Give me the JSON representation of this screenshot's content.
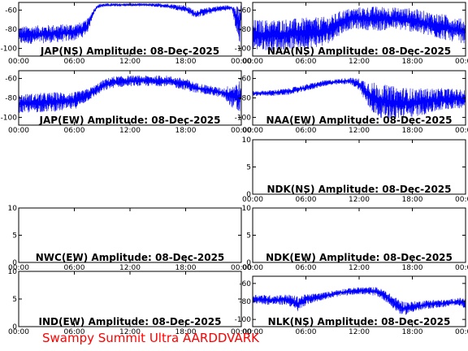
{
  "footer_text": "Swampy Summit Ultra AARDDVARK",
  "chart_data": [
    {
      "type": "line",
      "title": "JAP(NS) Amplitude: 08-Dec-2025",
      "x_ticks": [
        "00:00",
        "06:00",
        "12:00",
        "18:00",
        "00:00"
      ],
      "y_ticks": [
        "-60",
        "-80",
        "-100"
      ],
      "ylim": [
        -108,
        -52
      ],
      "color": "#0000ff",
      "series": [
        {
          "envelope_hours": [
            0,
            2,
            4,
            6,
            7,
            7.5,
            8,
            8.5,
            9,
            10,
            12,
            14,
            16,
            18,
            19,
            20,
            21,
            22,
            23,
            23.8,
            24
          ],
          "upper": [
            -77,
            -76,
            -75,
            -74,
            -72,
            -68,
            -60,
            -54,
            -53,
            -53,
            -53,
            -53,
            -53,
            -55,
            -60,
            -58,
            -56,
            -55,
            -55,
            -56,
            -54
          ],
          "lower": [
            -96,
            -95,
            -94,
            -92,
            -88,
            -82,
            -66,
            -58,
            -57,
            -56,
            -56,
            -56,
            -58,
            -62,
            -68,
            -66,
            -63,
            -61,
            -60,
            -100,
            -62
          ]
        }
      ]
    },
    {
      "type": "line",
      "title": "NAA(NS) Amplitude: 08-Dec-2025",
      "x_ticks": [
        "00:00",
        "06:00",
        "12:00",
        "18:00",
        "00:00"
      ],
      "y_ticks": [
        "-60",
        "-80",
        "-100"
      ],
      "ylim": [
        -108,
        -52
      ],
      "color": "#0000ff",
      "series": [
        {
          "envelope_hours": [
            0,
            2,
            4,
            6,
            8,
            9,
            10,
            11,
            12,
            14,
            16,
            18,
            20,
            22,
            24
          ],
          "upper": [
            -70,
            -70,
            -69,
            -68,
            -67,
            -65,
            -60,
            -58,
            -57,
            -56,
            -57,
            -58,
            -62,
            -65,
            -70
          ],
          "lower": [
            -102,
            -102,
            -101,
            -100,
            -98,
            -92,
            -85,
            -80,
            -80,
            -82,
            -80,
            -83,
            -88,
            -92,
            -95
          ]
        }
      ]
    },
    {
      "type": "line",
      "title": "JAP(EW) Amplitude: 08-Dec-2025",
      "x_ticks": [
        "00:00",
        "06:00",
        "12:00",
        "18:00",
        "00:00"
      ],
      "y_ticks": [
        "-60",
        "-80",
        "-100"
      ],
      "ylim": [
        -108,
        -52
      ],
      "color": "#0000ff",
      "series": [
        {
          "envelope_hours": [
            0,
            2,
            4,
            6,
            7,
            8,
            9,
            10,
            12,
            14,
            16,
            18,
            19,
            20,
            22,
            23.8,
            24
          ],
          "upper": [
            -76,
            -75,
            -74,
            -74,
            -72,
            -68,
            -62,
            -58,
            -57,
            -57,
            -57,
            -60,
            -64,
            -66,
            -70,
            -62,
            -70
          ],
          "lower": [
            -96,
            -95,
            -94,
            -92,
            -86,
            -80,
            -74,
            -70,
            -68,
            -68,
            -68,
            -72,
            -75,
            -76,
            -80,
            -98,
            -78
          ]
        }
      ]
    },
    {
      "type": "line",
      "title": "NAA(EW) Amplitude: 08-Dec-2025",
      "x_ticks": [
        "00:00",
        "06:00",
        "12:00",
        "18:00",
        "00:00"
      ],
      "y_ticks": [
        "-60",
        "-80",
        "-100"
      ],
      "ylim": [
        -108,
        -52
      ],
      "color": "#0000ff",
      "series": [
        {
          "envelope_hours": [
            0,
            2,
            4,
            6,
            8,
            10,
            11,
            12,
            13,
            14,
            16,
            18,
            20,
            22,
            24
          ],
          "upper": [
            -73,
            -72,
            -70,
            -66,
            -62,
            -60,
            -59,
            -60,
            -62,
            -65,
            -68,
            -70,
            -70,
            -70,
            -72
          ],
          "lower": [
            -78,
            -78,
            -77,
            -73,
            -68,
            -66,
            -66,
            -72,
            -90,
            -100,
            -102,
            -100,
            -96,
            -92,
            -90
          ]
        }
      ]
    },
    {
      "type": "line",
      "title": "NDK(NS) Amplitude: 08-Dec-2025",
      "x_ticks": [
        "00:00",
        "06:00",
        "12:00",
        "18:00",
        "00:00"
      ],
      "y_ticks": [
        "10",
        "5",
        "0"
      ],
      "ylim": [
        0,
        10
      ],
      "series": []
    },
    {
      "type": "line",
      "title": "NWC(EW) Amplitude: 08-Dec-2025",
      "x_ticks": [
        "00:00",
        "06:00",
        "12:00",
        "18:00",
        "00:00"
      ],
      "y_ticks": [
        "10",
        "5",
        "0"
      ],
      "ylim": [
        0,
        10
      ],
      "series": []
    },
    {
      "type": "line",
      "title": "NDK(EW) Amplitude: 08-Dec-2025",
      "x_ticks": [
        "00:00",
        "06:00",
        "12:00",
        "18:00",
        "00:00"
      ],
      "y_ticks": [
        "10",
        "5",
        "0"
      ],
      "ylim": [
        0,
        10
      ],
      "series": []
    },
    {
      "type": "line",
      "title": "IND(EW) Amplitude: 08-Dec-2025",
      "x_ticks": [
        "00:00",
        "06:00",
        "12:00",
        "18:00",
        "00:00"
      ],
      "y_ticks": [
        "10",
        "5",
        "0"
      ],
      "ylim": [
        0,
        10
      ],
      "series": []
    },
    {
      "type": "line",
      "title": "NLK(NS) Amplitude: 08-Dec-2025",
      "x_ticks": [
        "00:00",
        "06:00",
        "12:00",
        "18:00",
        "00:00"
      ],
      "y_ticks": [
        "-60",
        "-80",
        "-100"
      ],
      "ylim": [
        -108,
        -52
      ],
      "color": "#0000ff",
      "series": [
        {
          "envelope_hours": [
            0,
            2,
            4,
            5,
            6,
            8,
            10,
            12,
            14,
            15,
            16,
            17,
            18,
            20,
            22,
            23,
            24
          ],
          "upper": [
            -72,
            -73,
            -72,
            -74,
            -72,
            -70,
            -66,
            -64,
            -64,
            -68,
            -75,
            -80,
            -80,
            -78,
            -78,
            -76,
            -76
          ],
          "lower": [
            -82,
            -84,
            -84,
            -92,
            -84,
            -78,
            -74,
            -72,
            -74,
            -80,
            -90,
            -96,
            -92,
            -88,
            -86,
            -84,
            -88
          ]
        }
      ]
    }
  ]
}
